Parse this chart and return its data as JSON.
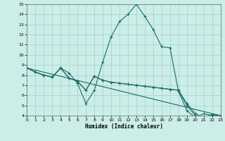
{
  "xlabel": "Humidex (Indice chaleur)",
  "xlim": [
    0,
    23
  ],
  "ylim": [
    4,
    15
  ],
  "xticks": [
    0,
    1,
    2,
    3,
    4,
    5,
    6,
    7,
    8,
    9,
    10,
    11,
    12,
    13,
    14,
    15,
    16,
    17,
    18,
    19,
    20,
    21,
    22,
    23
  ],
  "yticks": [
    4,
    5,
    6,
    7,
    8,
    9,
    10,
    11,
    12,
    13,
    14,
    15
  ],
  "bg_color": "#cceee8",
  "grid_color": "#aacccc",
  "line_color": "#1a6b6b",
  "series": [
    {
      "x": [
        0,
        1,
        2,
        3,
        4,
        5,
        6,
        7,
        8,
        9,
        10,
        11,
        12,
        13,
        14,
        15,
        16,
        17,
        18,
        19,
        20,
        21,
        22
      ],
      "y": [
        8.7,
        8.3,
        8.0,
        7.8,
        8.7,
        8.2,
        7.2,
        5.2,
        6.5,
        9.3,
        11.8,
        13.3,
        14.0,
        15.0,
        13.8,
        12.5,
        10.8,
        10.7,
        6.4,
        4.5,
        3.8,
        4.2,
        4.0
      ],
      "has_marker": true
    },
    {
      "x": [
        0,
        1,
        2,
        3,
        4,
        5,
        6,
        7,
        8,
        9,
        10,
        11,
        12,
        13,
        14,
        15,
        16,
        17,
        18,
        19,
        20,
        21,
        22,
        23
      ],
      "y": [
        8.7,
        8.3,
        8.0,
        7.8,
        8.7,
        7.7,
        7.4,
        6.5,
        7.9,
        7.5,
        7.3,
        7.2,
        7.1,
        7.0,
        6.9,
        6.8,
        6.7,
        6.6,
        6.5,
        5.2,
        4.2,
        3.8,
        4.1,
        4.0
      ],
      "has_marker": true
    },
    {
      "x": [
        0,
        1,
        2,
        3,
        4,
        5,
        6,
        7,
        8,
        9,
        10,
        11,
        12,
        13,
        14,
        15,
        16,
        17,
        18,
        19,
        20,
        21,
        22,
        23
      ],
      "y": [
        8.7,
        8.3,
        8.0,
        7.8,
        8.7,
        7.7,
        7.4,
        6.5,
        7.9,
        7.5,
        7.3,
        7.2,
        7.1,
        7.0,
        6.9,
        6.8,
        6.7,
        6.6,
        6.5,
        5.0,
        4.0,
        3.8,
        4.1,
        4.0
      ],
      "has_marker": true
    },
    {
      "x": [
        0,
        23
      ],
      "y": [
        8.7,
        4.0
      ],
      "has_marker": false
    }
  ]
}
